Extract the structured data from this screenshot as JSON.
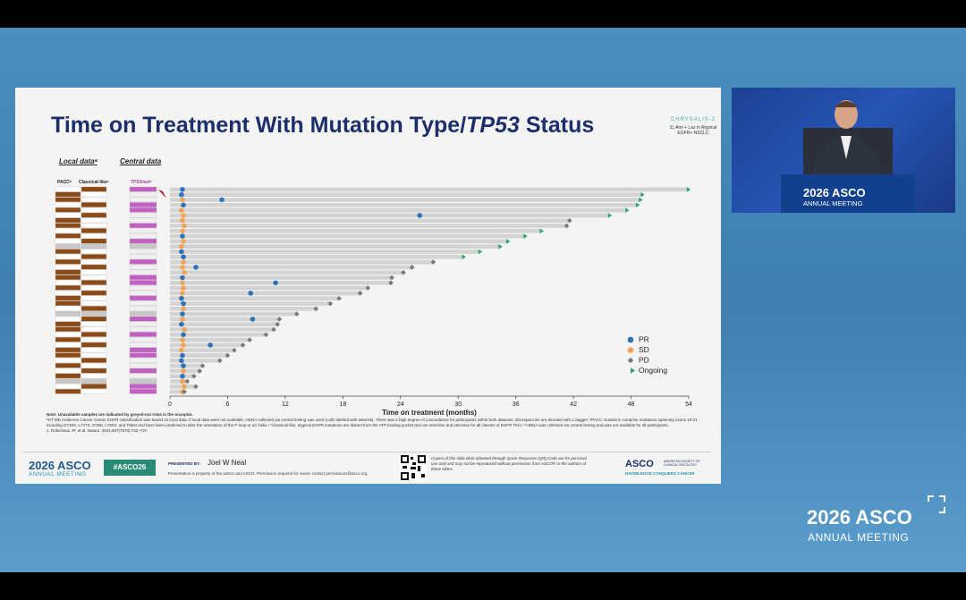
{
  "slide": {
    "title_prefix": "Time on Treatment With Mutation Type/",
    "title_italic": "TP53",
    "title_suffix": " Status",
    "study_name": "CHRYSALIS-2",
    "study_desc": "1L Ami + Laz in Atypical EGFR+ NSCLC",
    "local_data": "Local dataᵃ",
    "central_data": "Central data",
    "col_pacc": "PACCᵇ",
    "col_classical": "Classical-likeᶜ",
    "col_tp53": "TP53mutᵈ",
    "note": "Note: Unavailable samples are indicated by greyed-out rows in the oncoplot.",
    "footnote": "ᵃUT MD Anderson Cancer Center EGFR classification was based on local data. If local data were not available, ctDNA collected via central testing was used (cells labeled with asterisk). There was a high degree of concordance for participants within both datasets; discrepancies are denoted with a dagger. ᵇPACC mutations comprise mutations spanning exons 18-21 including G719X, L747X, S768I, L792X, and T854I and have been predicted to alter the orientation of the P-loop or αC-helix.¹ ᶜClassical-like, atypical EGFR mutations are distant from the ATP binding pocket and are sensitive and selective for all classes of EGFR TKIs.¹ ᵈctDNA was collected via central testing and was not available for all participants.",
    "reference": "1. Robichaux JP, et al. Nature. 2021;597(7878):732–737.",
    "footer_year_brand": "2026 ASCO",
    "footer_meeting": "ANNUAL MEETING",
    "hashtag": "#ASCO26",
    "presented_by": "PRESENTED BY:",
    "presenter": "Joel W Neal",
    "property_note": "Presentation is property of the author and ASCO. Permission required for reuse; contact permissions@asco.org.",
    "qr_note": "Copies of this slide deck obtained through Quick Response (QR) Code are for personal use only and may not be reproduced without permission from ASCO® or the authors of these slides.",
    "asco_brand": "ASCO",
    "asco_society": "AMERICAN SOCIETY OF CLINICAL ONCOLOGY",
    "asco_tagline": "KNOWLEDGE CONQUERS CANCER"
  },
  "video": {
    "podium_brand": "2026 ASCO",
    "podium_meeting": "ANNUAL MEETING"
  },
  "overlay_logo": {
    "brand": "2026 ASCO",
    "meeting": "ANNUAL MEETING"
  },
  "chart_data": {
    "type": "swimmer",
    "xlabel": "Time on treatment (months)",
    "xlim": [
      0,
      54
    ],
    "xticks": [
      0,
      6,
      12,
      18,
      24,
      30,
      36,
      42,
      48,
      54
    ],
    "bar_color": "#d3d3d3",
    "durations": [
      53.8,
      49,
      48.8,
      48.5,
      47.4,
      45.6,
      41.6,
      41.3,
      38.5,
      36.8,
      35,
      34.2,
      32.1,
      30.4,
      27.4,
      25.2,
      24.3,
      23.1,
      23,
      20.6,
      19.8,
      17.6,
      16.7,
      15.2,
      13.2,
      11.4,
      11.2,
      10.8,
      10,
      8.3,
      7.6,
      6.7,
      6,
      5.2,
      3.4,
      3.1,
      2.5,
      1.8,
      2.7,
      1.5
    ],
    "legend": "lower right",
    "series": [
      {
        "name": "PR",
        "color": "#2f72b8",
        "marker": "circle",
        "values": [
          1.3,
          1.2,
          5.4,
          1.4,
          null,
          26,
          null,
          null,
          null,
          1.3,
          null,
          null,
          1.2,
          1.4,
          null,
          2.7,
          null,
          1.3,
          11,
          null,
          8.4,
          1.2,
          1.4,
          null,
          1.3,
          8.6,
          1.2,
          null,
          1.4,
          null,
          4.2,
          null,
          1.3,
          1.2,
          1.4,
          null,
          1.3,
          null,
          null,
          null
        ]
      },
      {
        "name": "SD",
        "color": "#f0a458",
        "marker": "circle",
        "values": [
          null,
          null,
          1.3,
          null,
          1.2,
          1.4,
          1.3,
          1.5,
          1.3,
          null,
          1.4,
          1.2,
          null,
          null,
          1.4,
          1.3,
          1.5,
          null,
          1.3,
          1.4,
          1.3,
          null,
          null,
          1.4,
          null,
          1.3,
          null,
          1.5,
          null,
          1.3,
          1.4,
          1.2,
          null,
          null,
          null,
          1.4,
          null,
          1.3,
          1.5,
          1.3
        ]
      },
      {
        "name": "PD",
        "color": "#7a7a7a",
        "marker": "diamond",
        "values": [
          null,
          null,
          null,
          null,
          null,
          null,
          41.6,
          41.3,
          null,
          null,
          null,
          null,
          null,
          null,
          27.4,
          25.2,
          24.3,
          23.1,
          23,
          20.6,
          19.8,
          17.6,
          16.7,
          15.2,
          13.2,
          11.4,
          11.2,
          10.8,
          10,
          8.3,
          7.6,
          6.7,
          6,
          5.2,
          3.4,
          3.1,
          2.5,
          1.8,
          2.7,
          1.5
        ]
      },
      {
        "name": "Ongoing",
        "color": "#2fa56e",
        "marker": "triangle",
        "values": [
          53.8,
          49,
          48.8,
          48.5,
          47.4,
          45.6,
          null,
          null,
          38.5,
          36.8,
          35,
          34.2,
          32.1,
          30.4,
          null,
          null,
          null,
          null,
          null,
          null,
          null,
          null,
          null,
          null,
          null,
          null,
          null,
          null,
          null,
          null,
          null,
          null,
          null,
          null,
          null,
          null,
          null,
          null,
          null,
          null
        ]
      }
    ]
  }
}
